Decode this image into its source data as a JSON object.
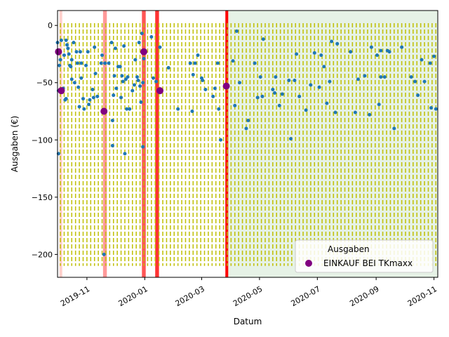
{
  "chart_data": {
    "type": "scatter",
    "xlabel": "Datum",
    "ylabel": "Ausgaben (€)",
    "xlim": [
      "2019-10-01",
      "2020-11-05"
    ],
    "ylim": [
      -220,
      13
    ],
    "yticks": [
      0,
      -50,
      -100,
      -150,
      -200
    ],
    "ytick_labels": [
      "0",
      "−50",
      "−100",
      "−150",
      "−200"
    ],
    "xticks": [
      "2019-11-01",
      "2020-01-01",
      "2020-03-01",
      "2020-05-01",
      "2020-07-01",
      "2020-09-01",
      "2020-11-01"
    ],
    "xtick_labels": [
      "2019-11",
      "2020-01",
      "2020-03",
      "2020-05",
      "2020-07",
      "2020-09",
      "2020-11"
    ],
    "legend": {
      "position": "lower-right",
      "entries": [
        {
          "label": "Ausgaben",
          "marker": "none"
        },
        {
          "label": "EINKAUF BEI TKmaxx",
          "marker": "purple-circle"
        }
      ]
    },
    "colors": {
      "points": "#1f77b4",
      "highlight": "#800080",
      "vlines": "#bfbf00",
      "shaded": "#e6f2e6"
    },
    "shaded_region": {
      "start": "2020-03-28",
      "end": "2020-11-05",
      "color": "#e6f2e6"
    },
    "spans": [
      {
        "start": "2019-10-03",
        "end": "2019-10-06",
        "color": "#ffd0cc"
      },
      {
        "start": "2019-11-18",
        "end": "2019-11-22",
        "color": "#ff9999"
      },
      {
        "start": "2019-12-29",
        "end": "2020-01-02",
        "color": "#ff5555"
      },
      {
        "start": "2020-01-12",
        "end": "2020-01-16",
        "color": "#ff3333"
      },
      {
        "start": "2020-03-26",
        "end": "2020-03-29",
        "color": "#ff0000"
      }
    ],
    "vlines_start": "2019-10-04",
    "vlines_step_days": 4,
    "vlines_range": [
      -210,
      2
    ],
    "series": [
      {
        "name": "Ausgaben",
        "color": "#1f77b4",
        "points": [
          [
            "2019-10-01",
            -15
          ],
          [
            "2019-10-02",
            -112
          ],
          [
            "2019-10-02",
            -57
          ],
          [
            "2019-10-03",
            -35
          ],
          [
            "2019-10-04",
            -30
          ],
          [
            "2019-10-05",
            -13
          ],
          [
            "2019-10-07",
            -55
          ],
          [
            "2019-10-08",
            -26
          ],
          [
            "2019-10-09",
            -65
          ],
          [
            "2019-10-10",
            -64
          ],
          [
            "2019-10-10",
            -13
          ],
          [
            "2019-10-11",
            -17
          ],
          [
            "2019-10-12",
            -20
          ],
          [
            "2019-10-13",
            -25
          ],
          [
            "2019-10-14",
            -35
          ],
          [
            "2019-10-15",
            -36
          ],
          [
            "2019-10-16",
            -47
          ],
          [
            "2019-10-16",
            -30
          ],
          [
            "2019-10-18",
            -15
          ],
          [
            "2019-10-19",
            -50
          ],
          [
            "2019-10-21",
            -23
          ],
          [
            "2019-10-22",
            -33
          ],
          [
            "2019-10-23",
            -54
          ],
          [
            "2019-10-24",
            -71
          ],
          [
            "2019-10-25",
            -23
          ],
          [
            "2019-10-26",
            -46
          ],
          [
            "2019-10-26",
            -33
          ],
          [
            "2019-10-28",
            -64
          ],
          [
            "2019-10-29",
            -73
          ],
          [
            "2019-10-31",
            -35
          ],
          [
            "2019-11-02",
            -23
          ],
          [
            "2019-11-03",
            -69
          ],
          [
            "2019-11-04",
            -65
          ],
          [
            "2019-11-07",
            -56
          ],
          [
            "2019-11-08",
            -63
          ],
          [
            "2019-11-09",
            -19
          ],
          [
            "2019-11-10",
            -42
          ],
          [
            "2019-11-12",
            -62
          ],
          [
            "2019-11-16",
            -33
          ],
          [
            "2019-11-17",
            -26
          ],
          [
            "2019-11-19",
            -200
          ],
          [
            "2019-11-20",
            -33
          ],
          [
            "2019-11-24",
            -33
          ],
          [
            "2019-11-27",
            -15
          ],
          [
            "2019-11-28",
            -105
          ],
          [
            "2019-11-28",
            -83
          ],
          [
            "2019-11-29",
            -61
          ],
          [
            "2019-11-30",
            -44
          ],
          [
            "2019-12-01",
            -20
          ],
          [
            "2019-12-02",
            -55
          ],
          [
            "2019-12-04",
            -36
          ],
          [
            "2019-12-06",
            -36
          ],
          [
            "2019-12-07",
            -63
          ],
          [
            "2019-12-08",
            -44
          ],
          [
            "2019-12-09",
            -49
          ],
          [
            "2019-12-10",
            -18
          ],
          [
            "2019-12-11",
            -112
          ],
          [
            "2019-12-12",
            -47
          ],
          [
            "2019-12-13",
            -73
          ],
          [
            "2019-12-14",
            -45
          ],
          [
            "2019-12-16",
            -73
          ],
          [
            "2019-12-19",
            -57
          ],
          [
            "2019-12-21",
            -52
          ],
          [
            "2019-12-22",
            -30
          ],
          [
            "2019-12-24",
            -45
          ],
          [
            "2019-12-25",
            -48
          ],
          [
            "2019-12-26",
            -15
          ],
          [
            "2019-12-27",
            -53
          ],
          [
            "2019-12-28",
            -67
          ],
          [
            "2019-12-29",
            -7
          ],
          [
            "2019-12-30",
            -50
          ],
          [
            "2019-12-30",
            -106
          ],
          [
            "2019-12-31",
            -29
          ],
          [
            "2020-01-01",
            -24
          ],
          [
            "2020-01-08",
            -10
          ],
          [
            "2020-01-10",
            -46
          ],
          [
            "2020-01-13",
            -49
          ],
          [
            "2020-01-17",
            -19
          ],
          [
            "2020-01-26",
            -37
          ],
          [
            "2020-02-05",
            -73
          ],
          [
            "2020-02-18",
            -33
          ],
          [
            "2020-02-20",
            -75
          ],
          [
            "2020-02-21",
            -43
          ],
          [
            "2020-02-23",
            -33
          ],
          [
            "2020-02-26",
            -26
          ],
          [
            "2020-03-01",
            -46
          ],
          [
            "2020-03-02",
            -48
          ],
          [
            "2020-03-05",
            -56
          ],
          [
            "2020-03-13",
            -62
          ],
          [
            "2020-03-15",
            -55
          ],
          [
            "2020-03-18",
            -33
          ],
          [
            "2020-03-19",
            -73
          ],
          [
            "2020-03-21",
            -100
          ],
          [
            "2020-04-03",
            -31
          ],
          [
            "2020-04-05",
            -70
          ],
          [
            "2020-04-07",
            -5
          ],
          [
            "2020-04-10",
            -50
          ],
          [
            "2020-04-17",
            -90
          ],
          [
            "2020-04-19",
            -83
          ],
          [
            "2020-04-26",
            -33
          ],
          [
            "2020-04-29",
            -63
          ],
          [
            "2020-05-02",
            -45
          ],
          [
            "2020-05-04",
            -62
          ],
          [
            "2020-05-05",
            -12
          ],
          [
            "2020-05-15",
            -56
          ],
          [
            "2020-05-17",
            -59
          ],
          [
            "2020-05-18",
            -45
          ],
          [
            "2020-05-22",
            -70
          ],
          [
            "2020-05-25",
            -60
          ],
          [
            "2020-06-01",
            -48
          ],
          [
            "2020-06-03",
            -99
          ],
          [
            "2020-06-07",
            -48
          ],
          [
            "2020-06-09",
            -25
          ],
          [
            "2020-06-12",
            -62
          ],
          [
            "2020-06-19",
            -74
          ],
          [
            "2020-06-24",
            -52
          ],
          [
            "2020-06-28",
            -24
          ],
          [
            "2020-07-03",
            -54
          ],
          [
            "2020-07-05",
            -26
          ],
          [
            "2020-07-08",
            -36
          ],
          [
            "2020-07-11",
            -68
          ],
          [
            "2020-07-14",
            -49
          ],
          [
            "2020-07-16",
            -14
          ],
          [
            "2020-07-20",
            -76
          ],
          [
            "2020-07-22",
            -16
          ],
          [
            "2020-08-05",
            -23
          ],
          [
            "2020-08-10",
            -76
          ],
          [
            "2020-08-13",
            -47
          ],
          [
            "2020-08-20",
            -44
          ],
          [
            "2020-08-25",
            -78
          ],
          [
            "2020-08-27",
            -19
          ],
          [
            "2020-09-02",
            -26
          ],
          [
            "2020-09-04",
            -69
          ],
          [
            "2020-09-06",
            -22
          ],
          [
            "2020-09-06",
            -45
          ],
          [
            "2020-09-10",
            -45
          ],
          [
            "2020-09-13",
            -22
          ],
          [
            "2020-09-15",
            -23
          ],
          [
            "2020-09-20",
            -90
          ],
          [
            "2020-09-28",
            -19
          ],
          [
            "2020-10-08",
            -45
          ],
          [
            "2020-10-12",
            -49
          ],
          [
            "2020-10-15",
            -61
          ],
          [
            "2020-10-19",
            -30
          ],
          [
            "2020-10-22",
            -49
          ],
          [
            "2020-10-28",
            -33
          ],
          [
            "2020-10-29",
            -72
          ],
          [
            "2020-11-01",
            -27
          ],
          [
            "2020-11-03",
            -73
          ]
        ]
      },
      {
        "name": "EINKAUF BEI TKmaxx",
        "color": "#800080",
        "points": [
          [
            "2019-10-02",
            -23
          ],
          [
            "2019-10-05",
            -57
          ],
          [
            "2019-11-19",
            -75
          ],
          [
            "2019-12-31",
            -23
          ],
          [
            "2020-01-17",
            -57
          ],
          [
            "2020-03-27",
            -53
          ]
        ]
      }
    ]
  }
}
